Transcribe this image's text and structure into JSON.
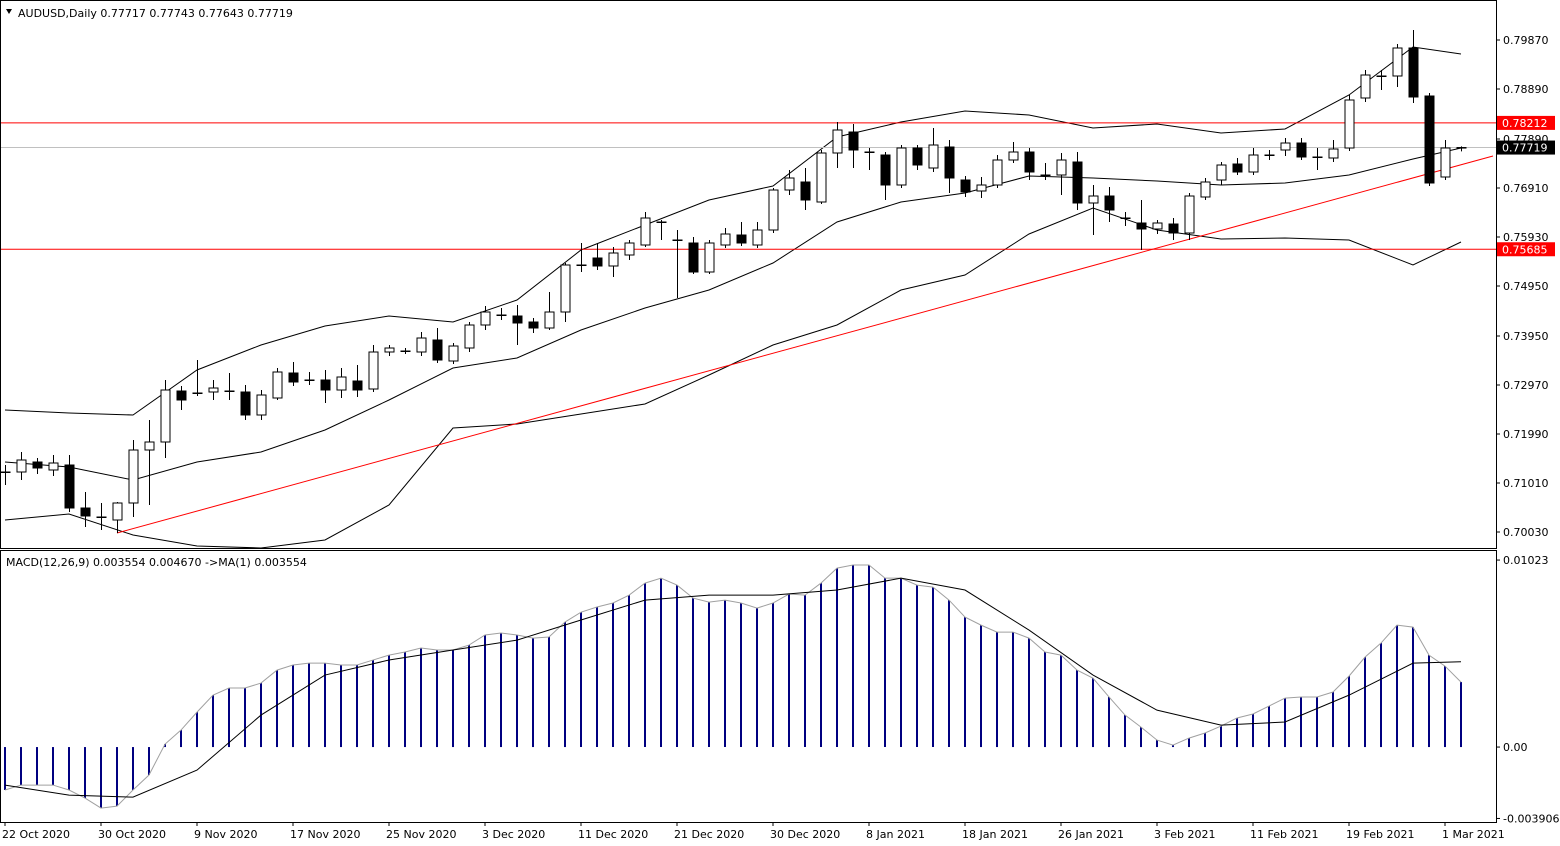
{
  "chart_data": [
    {
      "type": "candlestick",
      "title": "AUDUSD,Daily",
      "categories": [
        "22 Oct 2020",
        null,
        null,
        null,
        null,
        null,
        "30 Oct 2020",
        null,
        null,
        null,
        null,
        null,
        "9 Nov 2020",
        null,
        null,
        null,
        null,
        null,
        "17 Nov 2020",
        null,
        null,
        null,
        null,
        null,
        "25 Nov 2020",
        null,
        null,
        null,
        null,
        null,
        "3 Dec 2020",
        null,
        null,
        null,
        null,
        null,
        "11 Dec 2020",
        null,
        null,
        null,
        null,
        null,
        "21 Dec 2020",
        null,
        null,
        null,
        null,
        null,
        "30 Dec 2020",
        null,
        null,
        null,
        null,
        null,
        "8 Jan 2021",
        null,
        null,
        null,
        null,
        null,
        "18 Jan 2021",
        null,
        null,
        null,
        null,
        null,
        "26 Jan 2021",
        null,
        null,
        null,
        null,
        null,
        "3 Feb 2021",
        null,
        null,
        null,
        null,
        null,
        "11 Feb 2021",
        null,
        null,
        null,
        null,
        null,
        "19 Feb 2021",
        null,
        null,
        null,
        null,
        null,
        "1 Mar 2021",
        null
      ],
      "open": [
        0.7123,
        0.7123,
        0.7143,
        0.7127,
        0.7137,
        0.7051,
        0.7033,
        0.7027,
        0.7061,
        0.7167,
        0.7183,
        0.7285,
        0.7281,
        0.7283,
        0.7285,
        0.7283,
        0.7237,
        0.7271,
        0.7321,
        0.7307,
        0.7307,
        0.7287,
        0.7305,
        0.7289,
        0.7363,
        0.7365,
        0.7363,
        0.7387,
        0.7345,
        0.7371,
        0.7417,
        0.7437,
        0.7435,
        0.7423,
        0.7411,
        0.7443,
        0.7537,
        0.7551,
        0.7535,
        0.7557,
        0.7577,
        0.7623,
        0.7587,
        0.7581,
        0.7523,
        0.7577,
        0.7597,
        0.7577,
        0.7607,
        0.7687,
        0.7703,
        0.7663,
        0.7761,
        0.7803,
        0.7763,
        0.7757,
        0.7697,
        0.7771,
        0.7731,
        0.7773,
        0.7707,
        0.7685,
        0.7697,
        0.7747,
        0.7763,
        0.7717,
        0.7717,
        0.7743,
        0.7661,
        0.7675,
        0.7631,
        0.7621,
        0.7609,
        0.7619,
        0.7601,
        0.7673,
        0.7707,
        0.7739,
        0.7723,
        0.7757,
        0.7767,
        0.7781,
        0.7753,
        0.7751,
        0.7771,
        0.7871,
        0.7915,
        0.7915,
        0.7971,
        0.7875,
        0.7713,
        0.77717
      ],
      "high": [
        0.7137,
        0.7163,
        0.7151,
        0.7157,
        0.7157,
        0.7083,
        0.7061,
        0.7063,
        0.7187,
        0.7227,
        0.7307,
        0.7295,
        0.7347,
        0.7307,
        0.7321,
        0.7297,
        0.7287,
        0.7331,
        0.7343,
        0.7323,
        0.7327,
        0.7331,
        0.7337,
        0.7377,
        0.7377,
        0.7371,
        0.7403,
        0.7411,
        0.7381,
        0.7423,
        0.7455,
        0.7451,
        0.7457,
        0.7431,
        0.7483,
        0.7541,
        0.7581,
        0.7581,
        0.7573,
        0.7587,
        0.7643,
        0.7627,
        0.7607,
        0.7593,
        0.7587,
        0.7611,
        0.7623,
        0.7623,
        0.7691,
        0.7727,
        0.7731,
        0.7767,
        0.7823,
        0.7819,
        0.7771,
        0.7763,
        0.7777,
        0.7777,
        0.7811,
        0.7787,
        0.7715,
        0.7713,
        0.7757,
        0.7783,
        0.7771,
        0.7741,
        0.7761,
        0.7763,
        0.7697,
        0.7693,
        0.7643,
        0.7667,
        0.7627,
        0.7631,
        0.7681,
        0.7711,
        0.7743,
        0.7751,
        0.7771,
        0.7767,
        0.7791,
        0.7791,
        0.7771,
        0.7787,
        0.7877,
        0.7927,
        0.7927,
        0.7979,
        0.8007,
        0.7881,
        0.7787,
        0.77743
      ],
      "low": [
        0.7097,
        0.7107,
        0.7119,
        0.7115,
        0.7043,
        0.7013,
        0.7007,
        0.7001,
        0.7033,
        0.7057,
        0.7151,
        0.7247,
        0.7275,
        0.7267,
        0.7267,
        0.7227,
        0.7227,
        0.7267,
        0.7295,
        0.7297,
        0.7261,
        0.7271,
        0.7273,
        0.7283,
        0.7355,
        0.7359,
        0.7355,
        0.7341,
        0.7339,
        0.7363,
        0.7407,
        0.7427,
        0.7377,
        0.7401,
        0.7407,
        0.7423,
        0.7523,
        0.7527,
        0.7513,
        0.7547,
        0.7573,
        0.7587,
        0.7471,
        0.7519,
        0.7519,
        0.7571,
        0.7575,
        0.7571,
        0.7601,
        0.7677,
        0.7647,
        0.7659,
        0.7731,
        0.7731,
        0.7727,
        0.7667,
        0.7691,
        0.7727,
        0.7723,
        0.7681,
        0.7673,
        0.7671,
        0.7691,
        0.7741,
        0.7707,
        0.7707,
        0.7677,
        0.7647,
        0.7597,
        0.7623,
        0.7615,
        0.7567,
        0.7599,
        0.7587,
        0.7587,
        0.7667,
        0.7697,
        0.7717,
        0.7717,
        0.7747,
        0.7755,
        0.7747,
        0.7727,
        0.7743,
        0.7765,
        0.7863,
        0.7887,
        0.7893,
        0.7861,
        0.7695,
        0.7707,
        0.77643
      ],
      "close": [
        0.7123,
        0.7147,
        0.7131,
        0.7141,
        0.7051,
        0.7035,
        0.7033,
        0.7061,
        0.7167,
        0.7183,
        0.7287,
        0.7267,
        0.7281,
        0.7291,
        0.7285,
        0.7237,
        0.7277,
        0.7323,
        0.7303,
        0.7307,
        0.7287,
        0.7313,
        0.7287,
        0.7363,
        0.7371,
        0.7365,
        0.7391,
        0.7347,
        0.7375,
        0.7417,
        0.7443,
        0.7437,
        0.7421,
        0.7411,
        0.7443,
        0.7537,
        0.7537,
        0.7535,
        0.7561,
        0.7581,
        0.7631,
        0.7623,
        0.7587,
        0.7523,
        0.7581,
        0.7599,
        0.7581,
        0.7607,
        0.7687,
        0.7711,
        0.7667,
        0.7761,
        0.7807,
        0.7767,
        0.7763,
        0.7697,
        0.7771,
        0.7737,
        0.7777,
        0.7711,
        0.7683,
        0.7697,
        0.7747,
        0.7763,
        0.7723,
        0.7717,
        0.7747,
        0.7661,
        0.7675,
        0.7647,
        0.7631,
        0.7609,
        0.7621,
        0.7601,
        0.7675,
        0.7703,
        0.7737,
        0.7723,
        0.7757,
        0.7757,
        0.7781,
        0.7753,
        0.7753,
        0.7769,
        0.7867,
        0.7917,
        0.7915,
        0.7971,
        0.7873,
        0.7701,
        0.7771,
        0.77719
      ],
      "up_color": "#ffffff",
      "down_color": "#000000",
      "outline_color": "#000000",
      "ylim": [
        0.6971,
        0.8067
      ],
      "yticks": [
        {
          "value": 0.7987,
          "label": "0.79870"
        },
        {
          "value": 0.7889,
          "label": "0.78890"
        },
        {
          "value": 0.7789,
          "label": "0.77890"
        },
        {
          "value": 0.7691,
          "label": "0.76910"
        },
        {
          "value": 0.7593,
          "label": "0.75930"
        },
        {
          "value": 0.7495,
          "label": "0.74950"
        },
        {
          "value": 0.7395,
          "label": "0.73950"
        },
        {
          "value": 0.7297,
          "label": "0.72970"
        },
        {
          "value": 0.7199,
          "label": "0.71990"
        },
        {
          "value": 0.7101,
          "label": "0.71010"
        },
        {
          "value": 0.7003,
          "label": "0.70030"
        }
      ],
      "bands": {
        "color": "#000000",
        "x": [
          0,
          4,
          8,
          12,
          16,
          20,
          24,
          28,
          32,
          36,
          40,
          44,
          48,
          52,
          56,
          60,
          64,
          68,
          72,
          76,
          80,
          84,
          88,
          91
        ],
        "upper": [
          0.7247,
          0.7241,
          0.7237,
          0.7327,
          0.7377,
          0.7415,
          0.7435,
          0.7423,
          0.7467,
          0.7567,
          0.7617,
          0.7667,
          0.7695,
          0.7793,
          0.7823,
          0.7845,
          0.7837,
          0.7811,
          0.7819,
          0.7801,
          0.7809,
          0.7877,
          0.7973,
          0.7959
        ],
        "middle": [
          0.7143,
          0.7133,
          0.7107,
          0.7143,
          0.7163,
          0.7207,
          0.7267,
          0.7331,
          0.7351,
          0.7407,
          0.7451,
          0.7487,
          0.7541,
          0.7623,
          0.7663,
          0.7681,
          0.7715,
          0.7711,
          0.7705,
          0.7697,
          0.7701,
          0.7717,
          0.7749,
          0.7771
        ],
        "lower": [
          0.7027,
          0.7039,
          0.6997,
          0.6975,
          0.6971,
          0.6987,
          0.7057,
          0.7211,
          0.7219,
          0.7239,
          0.7259,
          0.7317,
          0.7377,
          0.7417,
          0.7487,
          0.7517,
          0.7599,
          0.7651,
          0.7607,
          0.7589,
          0.7591,
          0.7587,
          0.7537,
          0.7583
        ]
      },
      "trendline": {
        "color": "#ff0000",
        "x": [
          7,
          93
        ],
        "values": [
          0.7001,
          0.7755
        ]
      },
      "levels": {
        "color": "#ff0000",
        "values": [
          0.78212,
          0.75685
        ]
      },
      "price_line_color": "#c0c0c0"
    },
    {
      "type": "macd",
      "name": "MACD(12,26,9)",
      "color": "#000080",
      "line_color": "#a0a0a0",
      "values": [
        -0.00235,
        -0.00208,
        -0.00208,
        -0.00208,
        -0.00235,
        -0.00279,
        -0.00334,
        -0.00323,
        -0.00235,
        -0.00153,
        0.00016,
        0.00093,
        0.00191,
        0.00284,
        0.00323,
        0.00323,
        0.0035,
        0.00421,
        0.00449,
        0.00459,
        0.00459,
        0.00449,
        0.00449,
        0.00476,
        0.00503,
        0.0052,
        0.00542,
        0.00531,
        0.00531,
        0.00558,
        0.00613,
        0.00624,
        0.00613,
        0.00596,
        0.00602,
        0.00684,
        0.00738,
        0.00766,
        0.00788,
        0.00831,
        0.00897,
        0.00924,
        0.00886,
        0.00815,
        0.00793,
        0.00804,
        0.00788,
        0.0076,
        0.00788,
        0.00837,
        0.00831,
        0.00897,
        0.00979,
        0.00996,
        0.00996,
        0.00924,
        0.00924,
        0.00886,
        0.00875,
        0.00804,
        0.00711,
        0.00667,
        0.00629,
        0.00629,
        0.00596,
        0.0052,
        0.00503,
        0.00421,
        0.00377,
        0.00274,
        0.00175,
        0.00109,
        0.00038,
        0.00011,
        0.00049,
        0.00077,
        0.00115,
        0.00159,
        0.00181,
        0.00224,
        0.00268,
        0.00274,
        0.00274,
        0.00301,
        0.00388,
        0.00492,
        0.00569,
        0.00667,
        0.00656,
        0.00503,
        0.00443,
        0.003554
      ],
      "signal": {
        "color": "#000000",
        "x": [
          0,
          4,
          8,
          12,
          16,
          20,
          24,
          28,
          32,
          36,
          40,
          44,
          48,
          52,
          56,
          60,
          64,
          68,
          72,
          76,
          80,
          84,
          88,
          91
        ],
        "values": [
          -0.00208,
          -0.00263,
          -0.00274,
          -0.00126,
          0.00175,
          0.00394,
          0.00476,
          0.00531,
          0.00585,
          0.00695,
          0.00804,
          0.00831,
          0.00831,
          0.00859,
          0.00924,
          0.00859,
          0.0064,
          0.00394,
          0.00202,
          0.0012,
          0.00137,
          0.00284,
          0.00459,
          0.00467
        ],
        "value_labels": [
          null,
          null,
          null,
          null,
          null,
          null,
          null,
          null,
          null,
          null,
          null,
          null,
          null,
          null,
          null,
          null,
          null,
          null,
          null,
          null,
          null,
          null,
          null,
          "0.004670"
        ]
      },
      "ma_name": "->MA(1)",
      "ylim": [
        -0.0041,
        0.01078
      ],
      "yticks": [
        0.01023,
        {
          "value": 0,
          "label": "0.00"
        },
        -0.003906
      ]
    }
  ]
}
